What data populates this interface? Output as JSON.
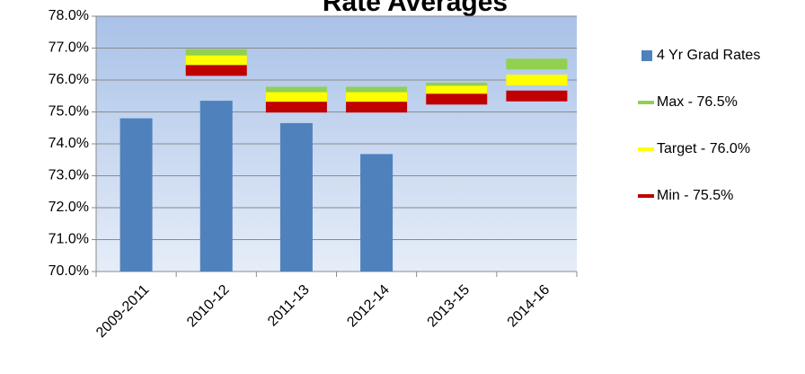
{
  "chart_data": {
    "type": "bar",
    "title": "Rate Averages",
    "categories": [
      "2009-2011",
      "2010-12",
      "2011-13",
      "2012-14",
      "2013-15",
      "2014-16"
    ],
    "series": [
      {
        "name": "4 Yr Grad Rates",
        "color": "#4f81bd",
        "kind": "bar",
        "values": [
          74.8,
          75.35,
          74.65,
          73.68,
          null,
          null
        ]
      },
      {
        "name": "Max - 76.5%",
        "color": "#92d050",
        "kind": "marker",
        "values": [
          null,
          76.8,
          75.62,
          75.62,
          75.75,
          76.5
        ]
      },
      {
        "name": "Target - 76.0%",
        "color": "#ffff00",
        "kind": "marker",
        "values": [
          null,
          76.6,
          75.45,
          75.45,
          75.65,
          76.0
        ]
      },
      {
        "name": "Min - 75.5%",
        "color": "#c00000",
        "kind": "marker",
        "values": [
          null,
          76.3,
          75.15,
          75.15,
          75.4,
          75.5
        ]
      }
    ],
    "ylim": [
      70,
      78
    ],
    "yticks": [
      {
        "value": 70,
        "label": "70.0%"
      },
      {
        "value": 71,
        "label": "71.0%"
      },
      {
        "value": 72,
        "label": "72.0%"
      },
      {
        "value": 73,
        "label": "73.0%"
      },
      {
        "value": 74,
        "label": "74.0%"
      },
      {
        "value": 75,
        "label": "75.0%"
      },
      {
        "value": 76,
        "label": "76.0%"
      },
      {
        "value": 77,
        "label": "77.0%"
      },
      {
        "value": 78,
        "label": "78.0%"
      }
    ],
    "grid": true
  }
}
